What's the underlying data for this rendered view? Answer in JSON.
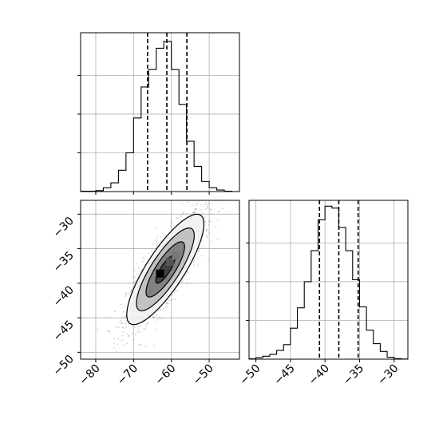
{
  "chart_data": {
    "type": "corner",
    "grid": true,
    "panels": [
      {
        "name": "x-marginal",
        "type": "histogram-step",
        "xlim": [
          -84,
          -42
        ],
        "ylim": [
          0,
          820
        ],
        "bins": [
          -84,
          -82,
          -80,
          -78,
          -76,
          -74,
          -72,
          -70,
          -68,
          -66,
          -64,
          -62,
          -60,
          -58,
          -56,
          -54,
          -52,
          -50,
          -48,
          -46,
          -44,
          -42
        ],
        "counts": [
          2,
          2,
          5,
          20,
          45,
          110,
          200,
          380,
          540,
          630,
          740,
          775,
          630,
          450,
          260,
          130,
          52,
          20,
          8,
          2,
          0
        ],
        "quantiles": [
          -66.3,
          -61.2,
          -55.9
        ],
        "grid_x": [
          -80,
          -70,
          -60,
          -50
        ],
        "grid_y": [
          200,
          400,
          600
        ]
      },
      {
        "name": "y-marginal",
        "type": "histogram-step",
        "xlim": [
          -51,
          -28
        ],
        "ylim": [
          0,
          820
        ],
        "bins": [
          -51,
          -50,
          -49,
          -48,
          -47,
          -46,
          -45,
          -44,
          -43,
          -42,
          -41,
          -40,
          -39,
          -38,
          -37,
          -36,
          -35,
          -34,
          -33,
          -32,
          -31,
          -30,
          -29,
          -28
        ],
        "counts": [
          2,
          8,
          15,
          25,
          45,
          75,
          160,
          265,
          400,
          560,
          720,
          790,
          780,
          680,
          560,
          410,
          270,
          150,
          80,
          40,
          10,
          3,
          1
        ],
        "quantiles": [
          -40.8,
          -38.0,
          -35.2
        ],
        "grid_x": [
          -50,
          -45,
          -40,
          -35,
          -30
        ],
        "grid_y": [
          200,
          400,
          600
        ],
        "x_ticks": [
          "−50",
          "−45",
          "−40",
          "−35",
          "−30"
        ]
      },
      {
        "name": "joint",
        "type": "scatter-density",
        "xlim": [
          -84,
          -42
        ],
        "ylim": [
          -51,
          -28
        ],
        "x_ticks": [
          "−80",
          "−70",
          "−60",
          "−50"
        ],
        "y_ticks": [
          "−30",
          "−35",
          "−40",
          "−45",
          "−50"
        ],
        "grid_x": [
          -80,
          -70,
          -60,
          -50
        ],
        "grid_y": [
          -30,
          -35,
          -40,
          -45,
          -50
        ],
        "center": [
          -61.6,
          -38.0
        ],
        "sigma": [
          5.1,
          4.0
        ],
        "correlation": 0.82,
        "points": 1500,
        "contour_levels_sigma": [
          0.5,
          1.0,
          1.5,
          2.0
        ],
        "colors": {
          "points": "#7a7a7a",
          "density_dark": "#000000",
          "line": "#000000"
        }
      }
    ]
  }
}
